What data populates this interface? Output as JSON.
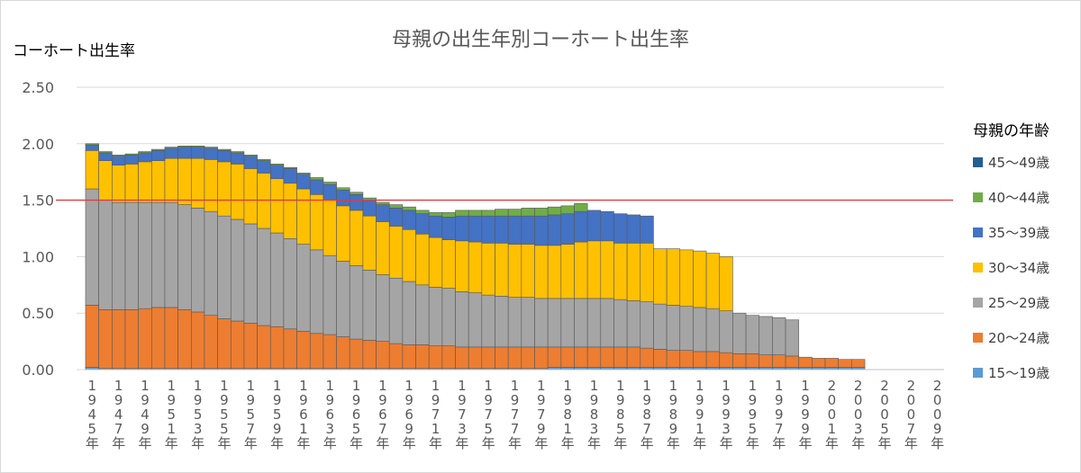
{
  "chart_data": {
    "type": "area",
    "title": "母親の出生年別コーホート出生率",
    "ylabel": "コーホート出生率",
    "xlabel": "",
    "ylim": [
      0,
      2.5
    ],
    "yticks": [
      "0.00",
      "0.50",
      "1.00",
      "1.50",
      "2.00",
      "2.50"
    ],
    "reference_line": {
      "value": 1.5,
      "color": "#e03c3c"
    },
    "grid": "horizontal",
    "legend_title": "母親の年齢",
    "legend_position": "right",
    "x": [
      "1945年",
      "1946年",
      "1947年",
      "1948年",
      "1949年",
      "1950年",
      "1951年",
      "1952年",
      "1953年",
      "1954年",
      "1955年",
      "1956年",
      "1957年",
      "1958年",
      "1959年",
      "1960年",
      "1961年",
      "1962年",
      "1963年",
      "1964年",
      "1965年",
      "1966年",
      "1967年",
      "1968年",
      "1969年",
      "1970年",
      "1971年",
      "1972年",
      "1973年",
      "1974年",
      "1975年",
      "1976年",
      "1977年",
      "1978年",
      "1979年",
      "1980年",
      "1981年",
      "1982年",
      "1983年",
      "1984年",
      "1985年",
      "1986年",
      "1987年",
      "1988年",
      "1989年",
      "1990年",
      "1991年",
      "1992年",
      "1993年",
      "1994年",
      "1995年",
      "1996年",
      "1997年",
      "1998年",
      "1999年",
      "2000年",
      "2001年",
      "2002年",
      "2003年",
      "2004年",
      "2005年",
      "2006年",
      "2007年",
      "2008年",
      "2009年"
    ],
    "xtick_labels": [
      "1945年",
      "1947年",
      "1949年",
      "1951年",
      "1953年",
      "1955年",
      "1957年",
      "1959年",
      "1961年",
      "1963年",
      "1965年",
      "1967年",
      "1969年",
      "1971年",
      "1973年",
      "1975年",
      "1977年",
      "1979年",
      "1981年",
      "1983年",
      "1985年",
      "1987年",
      "1989年",
      "1991年",
      "1993年",
      "1995年",
      "1997年",
      "1999年",
      "2001年",
      "2003年",
      "2005年",
      "2007年",
      "2009年"
    ],
    "series": [
      {
        "name": "15～19歳",
        "color": "#5b9bd5",
        "values": [
          0.02,
          0.01,
          0.01,
          0.01,
          0.01,
          0.01,
          0.01,
          0.01,
          0.01,
          0.01,
          0.01,
          0.01,
          0.01,
          0.01,
          0.01,
          0.01,
          0.01,
          0.01,
          0.01,
          0.01,
          0.01,
          0.01,
          0.01,
          0.01,
          0.01,
          0.01,
          0.01,
          0.01,
          0.01,
          0.01,
          0.01,
          0.01,
          0.01,
          0.01,
          0.01,
          0.02,
          0.02,
          0.02,
          0.02,
          0.02,
          0.02,
          0.02,
          0.02,
          0.02,
          0.02,
          0.02,
          0.02,
          0.02,
          0.02,
          0.02,
          0.02,
          0.02,
          0.02,
          0.02,
          0.02,
          0.02,
          0.02,
          0.02,
          0.02,
          0,
          0,
          0,
          0,
          0,
          0
        ]
      },
      {
        "name": "20～24歳",
        "color": "#ed7d31",
        "values": [
          0.55,
          0.52,
          0.52,
          0.52,
          0.53,
          0.54,
          0.54,
          0.52,
          0.5,
          0.47,
          0.44,
          0.42,
          0.4,
          0.38,
          0.37,
          0.35,
          0.33,
          0.31,
          0.3,
          0.28,
          0.26,
          0.25,
          0.24,
          0.22,
          0.21,
          0.21,
          0.2,
          0.2,
          0.19,
          0.19,
          0.19,
          0.19,
          0.19,
          0.19,
          0.19,
          0.18,
          0.18,
          0.18,
          0.18,
          0.18,
          0.18,
          0.18,
          0.17,
          0.16,
          0.15,
          0.15,
          0.14,
          0.14,
          0.13,
          0.12,
          0.12,
          0.11,
          0.11,
          0.1,
          0.09,
          0.08,
          0.08,
          0.07,
          0.07,
          0,
          0,
          0,
          0,
          0,
          0
        ]
      },
      {
        "name": "25～29歳",
        "color": "#a5a5a5",
        "values": [
          1.03,
          0.97,
          0.95,
          0.95,
          0.94,
          0.93,
          0.93,
          0.93,
          0.92,
          0.92,
          0.91,
          0.9,
          0.88,
          0.86,
          0.83,
          0.8,
          0.77,
          0.74,
          0.7,
          0.67,
          0.65,
          0.62,
          0.59,
          0.58,
          0.56,
          0.53,
          0.52,
          0.51,
          0.49,
          0.48,
          0.46,
          0.45,
          0.44,
          0.44,
          0.43,
          0.43,
          0.43,
          0.43,
          0.43,
          0.43,
          0.42,
          0.41,
          0.41,
          0.4,
          0.4,
          0.39,
          0.39,
          0.38,
          0.37,
          0.36,
          0.34,
          0.34,
          0.33,
          0.32,
          0,
          0,
          0,
          0,
          0,
          0,
          0,
          0,
          0,
          0,
          0
        ]
      },
      {
        "name": "30～34歳",
        "color": "#ffc000",
        "values": [
          0.34,
          0.35,
          0.33,
          0.34,
          0.36,
          0.37,
          0.39,
          0.41,
          0.44,
          0.46,
          0.48,
          0.49,
          0.49,
          0.49,
          0.48,
          0.49,
          0.49,
          0.49,
          0.49,
          0.49,
          0.49,
          0.48,
          0.47,
          0.46,
          0.46,
          0.45,
          0.44,
          0.43,
          0.45,
          0.45,
          0.46,
          0.47,
          0.47,
          0.47,
          0.47,
          0.47,
          0.48,
          0.5,
          0.51,
          0.51,
          0.5,
          0.51,
          0.52,
          0.49,
          0.5,
          0.5,
          0.5,
          0.49,
          0.48,
          0,
          0,
          0,
          0,
          0,
          0,
          0,
          0,
          0,
          0,
          0,
          0,
          0,
          0,
          0,
          0
        ]
      },
      {
        "name": "35～39歳",
        "color": "#4472c4",
        "values": [
          0.05,
          0.07,
          0.08,
          0.08,
          0.08,
          0.09,
          0.09,
          0.1,
          0.1,
          0.1,
          0.1,
          0.1,
          0.11,
          0.11,
          0.12,
          0.13,
          0.13,
          0.13,
          0.14,
          0.14,
          0.14,
          0.14,
          0.15,
          0.16,
          0.17,
          0.18,
          0.19,
          0.2,
          0.22,
          0.23,
          0.24,
          0.24,
          0.25,
          0.25,
          0.26,
          0.27,
          0.27,
          0.27,
          0.27,
          0.26,
          0.26,
          0.25,
          0.24,
          0,
          0,
          0,
          0,
          0,
          0,
          0,
          0,
          0,
          0,
          0,
          0,
          0,
          0,
          0,
          0,
          0,
          0,
          0,
          0,
          0,
          0
        ]
      },
      {
        "name": "40～44歳",
        "color": "#70ad47",
        "values": [
          0.01,
          0.01,
          0.01,
          0.01,
          0.01,
          0.01,
          0.01,
          0.01,
          0.01,
          0.01,
          0.01,
          0.01,
          0.01,
          0.01,
          0.01,
          0.01,
          0.01,
          0.02,
          0.02,
          0.02,
          0.02,
          0.02,
          0.02,
          0.03,
          0.03,
          0.03,
          0.03,
          0.04,
          0.05,
          0.05,
          0.05,
          0.06,
          0.06,
          0.07,
          0.07,
          0.07,
          0.07,
          0.07,
          0,
          0,
          0,
          0,
          0,
          0,
          0,
          0,
          0,
          0,
          0,
          0,
          0,
          0,
          0,
          0,
          0,
          0,
          0,
          0,
          0,
          0,
          0,
          0,
          0,
          0,
          0
        ]
      },
      {
        "name": "45～49歳",
        "color": "#255e91",
        "values": [
          0,
          0,
          0,
          0,
          0,
          0,
          0,
          0,
          0,
          0,
          0,
          0,
          0,
          0,
          0,
          0,
          0,
          0,
          0,
          0,
          0,
          0,
          0,
          0,
          0,
          0,
          0,
          0,
          0,
          0,
          0,
          0,
          0,
          0,
          0,
          0,
          0,
          0,
          0,
          0,
          0,
          0,
          0,
          0,
          0,
          0,
          0,
          0,
          0,
          0,
          0,
          0,
          0,
          0,
          0,
          0,
          0,
          0,
          0,
          0,
          0,
          0,
          0,
          0,
          0
        ]
      }
    ]
  }
}
